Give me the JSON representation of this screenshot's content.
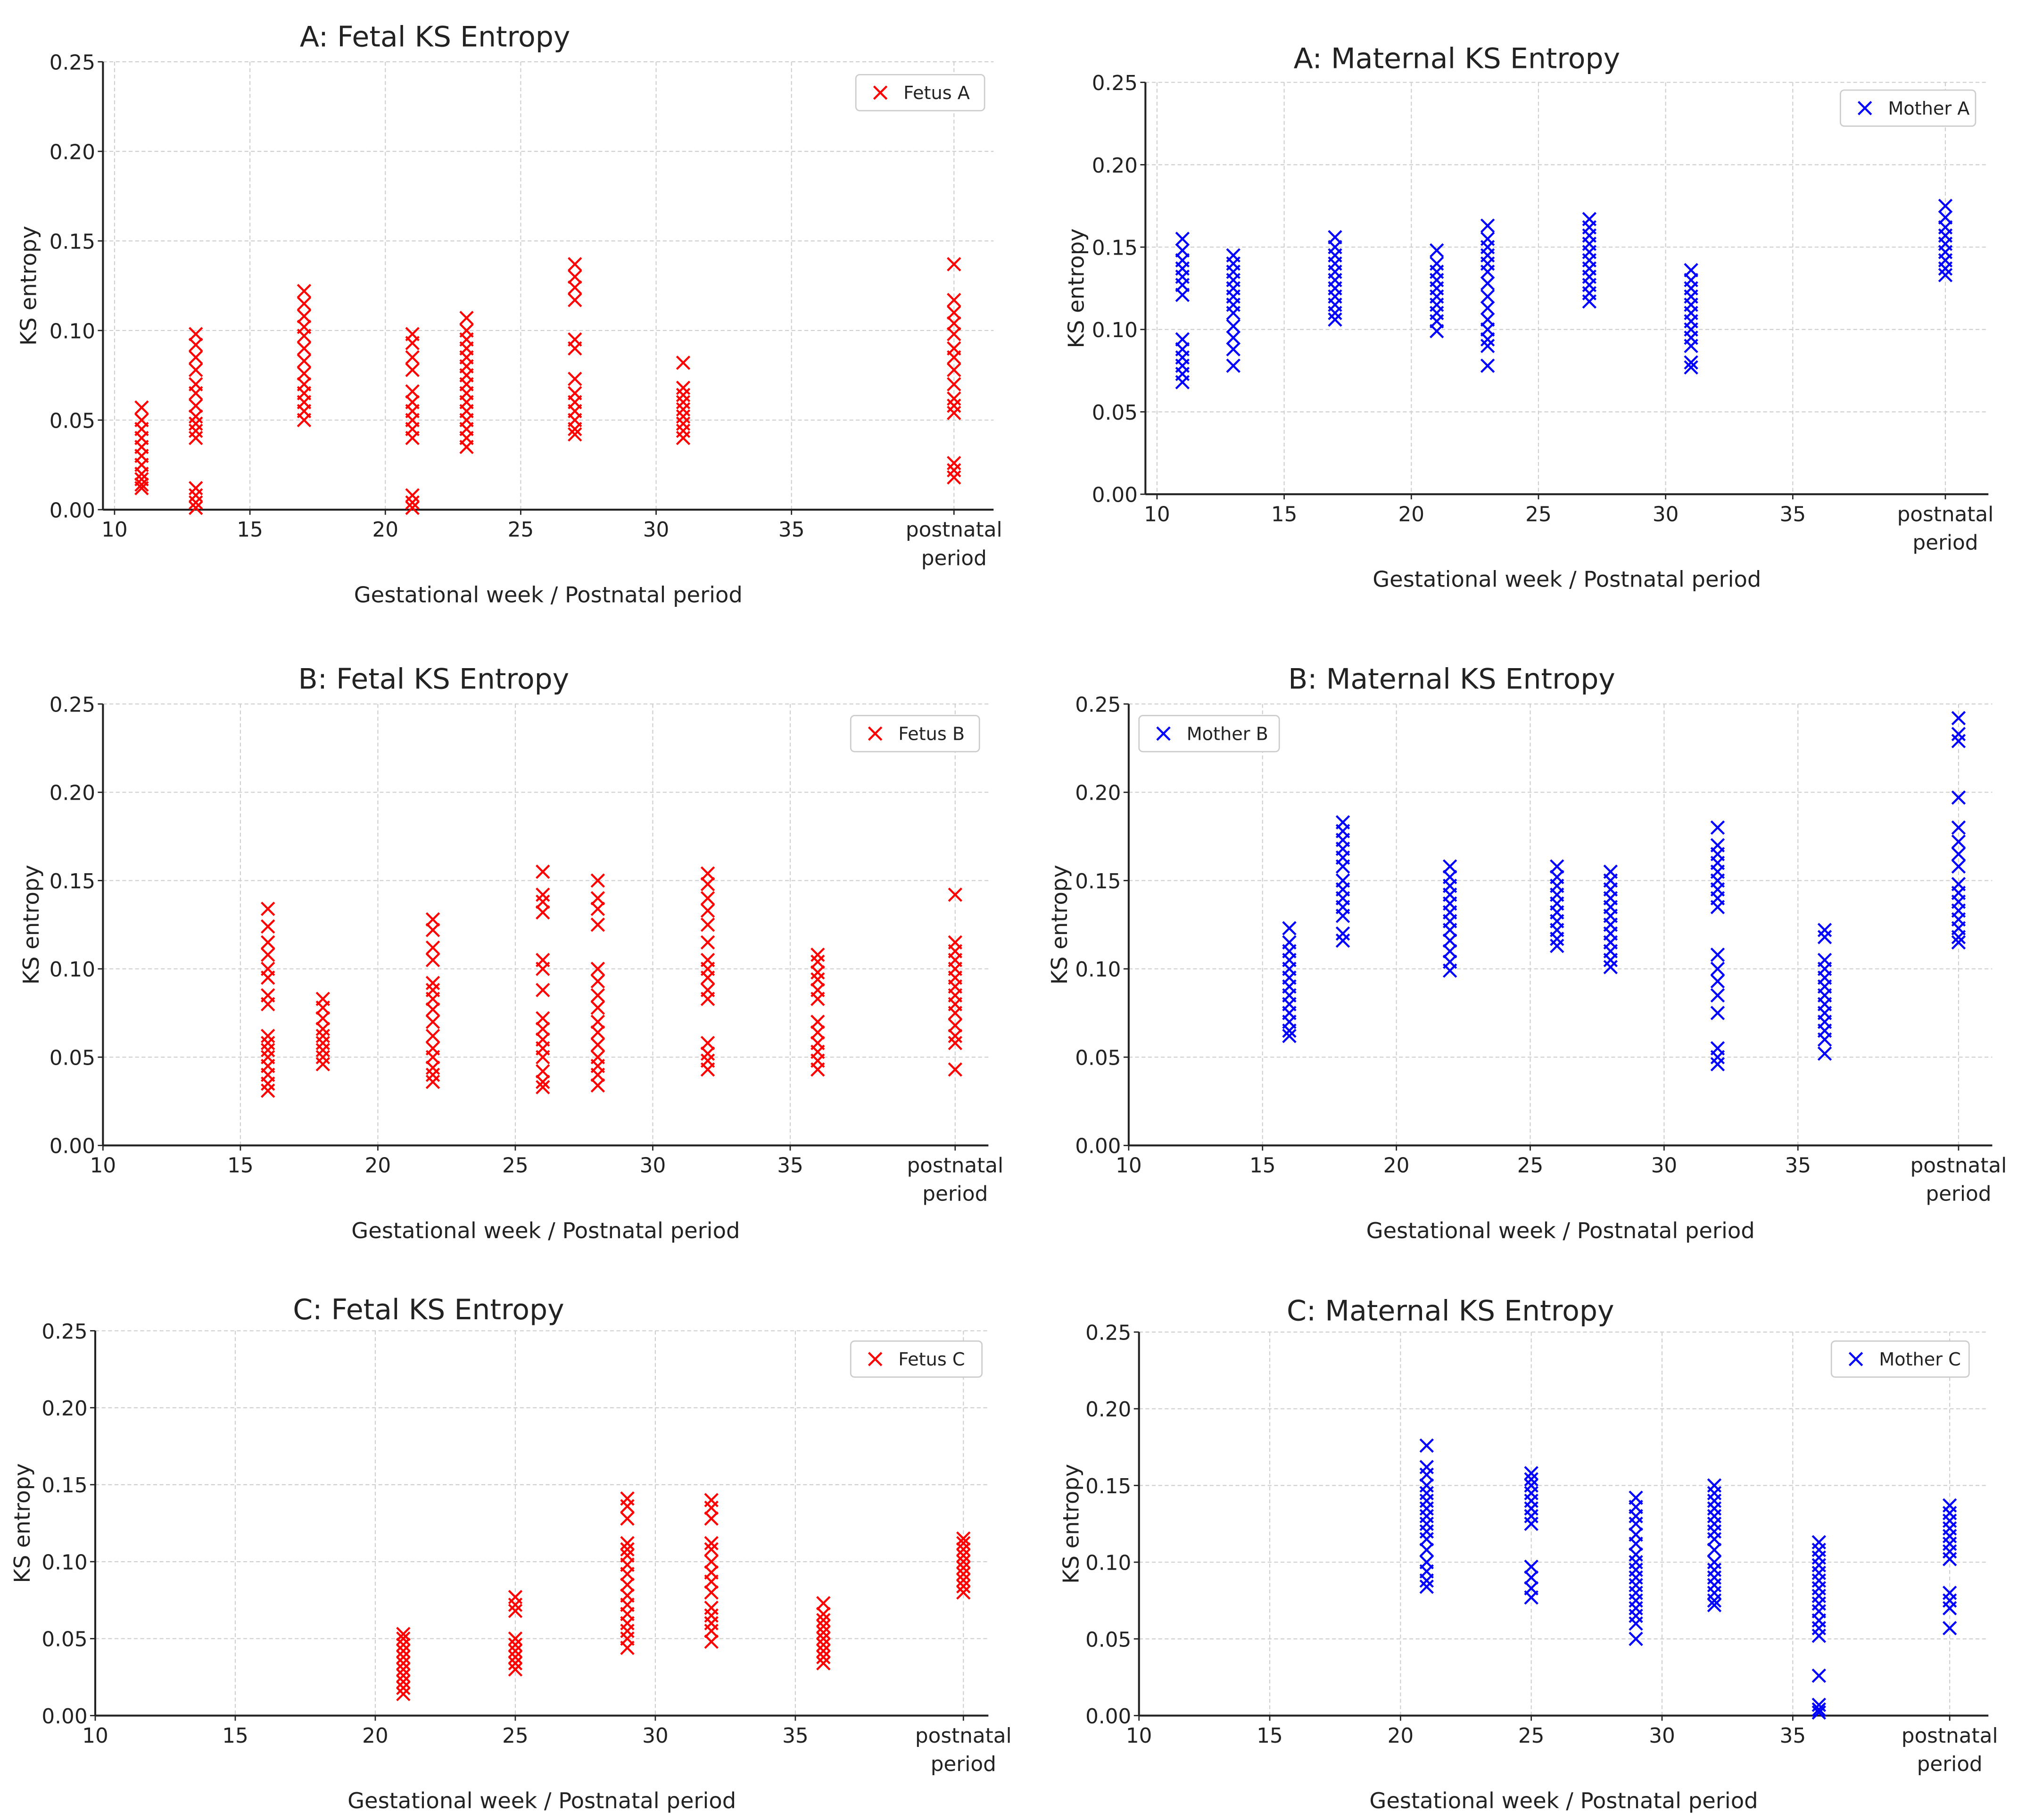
{
  "chart_data": [
    {
      "type": "scatter",
      "title": "A: Fetal KS Entropy",
      "xlabel": "Gestational week / Postnatal period",
      "ylabel": "KS entropy",
      "ylim": [
        0,
        0.25
      ],
      "y_ticks": [
        "0.00",
        "0.05",
        "0.10",
        "0.15",
        "0.20",
        "0.25"
      ],
      "x_ticks": [
        "10",
        "15",
        "20",
        "25",
        "30",
        "35"
      ],
      "postnatal_label": [
        "postnatal",
        "period"
      ],
      "postnatal_x": 41,
      "legend": "Fetus A",
      "legend_placement": "top-right",
      "color": "#ff0000",
      "grid": true,
      "groups": [
        {
          "x": 11,
          "y": [
            0.057,
            0.05,
            0.045,
            0.04,
            0.035,
            0.03,
            0.025,
            0.02,
            0.017,
            0.014,
            0.012
          ]
        },
        {
          "x": 13,
          "y": [
            0.098,
            0.092,
            0.085,
            0.078,
            0.07,
            0.065,
            0.058,
            0.052,
            0.048,
            0.044,
            0.04,
            0.012,
            0.008,
            0.004,
            0.001
          ]
        },
        {
          "x": 17,
          "y": [
            0.122,
            0.115,
            0.108,
            0.102,
            0.097,
            0.09,
            0.083,
            0.076,
            0.07,
            0.065,
            0.06,
            0.055,
            0.05
          ]
        },
        {
          "x": 21,
          "y": [
            0.098,
            0.093,
            0.085,
            0.078,
            0.066,
            0.06,
            0.055,
            0.05,
            0.045,
            0.04,
            0.008,
            0.004,
            0.001
          ]
        },
        {
          "x": 23,
          "y": [
            0.107,
            0.1,
            0.095,
            0.09,
            0.085,
            0.08,
            0.075,
            0.07,
            0.065,
            0.06,
            0.055,
            0.05,
            0.045,
            0.04,
            0.035
          ]
        },
        {
          "x": 27,
          "y": [
            0.137,
            0.13,
            0.124,
            0.117,
            0.095,
            0.09,
            0.073,
            0.065,
            0.06,
            0.055,
            0.05,
            0.045,
            0.042
          ]
        },
        {
          "x": 31,
          "y": [
            0.082,
            0.068,
            0.064,
            0.06,
            0.056,
            0.052,
            0.048,
            0.044,
            0.04
          ]
        },
        {
          "x": 41,
          "y": [
            0.137,
            0.117,
            0.11,
            0.104,
            0.098,
            0.09,
            0.085,
            0.078,
            0.07,
            0.062,
            0.058,
            0.054,
            0.026,
            0.022,
            0.018
          ]
        }
      ]
    },
    {
      "type": "scatter",
      "title": "A: Maternal KS Entropy",
      "xlabel": "Gestational week / Postnatal period",
      "ylabel": "KS entropy",
      "ylim": [
        0,
        0.25
      ],
      "y_ticks": [
        "0.00",
        "0.05",
        "0.10",
        "0.15",
        "0.20",
        "0.25"
      ],
      "x_ticks": [
        "10",
        "15",
        "20",
        "25",
        "30",
        "35"
      ],
      "postnatal_label": [
        "postnatal",
        "period"
      ],
      "postnatal_x": 41,
      "legend": "Mother A",
      "legend_placement": "top-right",
      "color": "#0000ff",
      "grid": true,
      "groups": [
        {
          "x": 11,
          "y": [
            0.155,
            0.148,
            0.142,
            0.137,
            0.132,
            0.127,
            0.121,
            0.094,
            0.088,
            0.083,
            0.078,
            0.073,
            0.068
          ]
        },
        {
          "x": 13,
          "y": [
            0.145,
            0.14,
            0.135,
            0.13,
            0.125,
            0.12,
            0.115,
            0.11,
            0.102,
            0.095,
            0.088,
            0.078
          ]
        },
        {
          "x": 17,
          "y": [
            0.156,
            0.15,
            0.145,
            0.14,
            0.135,
            0.13,
            0.125,
            0.12,
            0.115,
            0.11,
            0.106
          ]
        },
        {
          "x": 21,
          "y": [
            0.148,
            0.14,
            0.135,
            0.13,
            0.125,
            0.12,
            0.115,
            0.11,
            0.105,
            0.099
          ]
        },
        {
          "x": 23,
          "y": [
            0.163,
            0.155,
            0.15,
            0.145,
            0.14,
            0.135,
            0.128,
            0.12,
            0.113,
            0.106,
            0.1,
            0.094,
            0.09,
            0.078
          ]
        },
        {
          "x": 27,
          "y": [
            0.167,
            0.162,
            0.157,
            0.152,
            0.147,
            0.142,
            0.137,
            0.132,
            0.127,
            0.122,
            0.117
          ]
        },
        {
          "x": 31,
          "y": [
            0.136,
            0.13,
            0.125,
            0.12,
            0.115,
            0.11,
            0.105,
            0.1,
            0.095,
            0.09,
            0.08,
            0.077
          ]
        },
        {
          "x": 41,
          "y": [
            0.175,
            0.168,
            0.162,
            0.157,
            0.152,
            0.147,
            0.142,
            0.137,
            0.133
          ]
        }
      ]
    },
    {
      "type": "scatter",
      "title": "B: Fetal KS Entropy",
      "xlabel": "Gestational week / Postnatal period",
      "ylabel": "KS entropy",
      "ylim": [
        0,
        0.25
      ],
      "y_ticks": [
        "0.00",
        "0.05",
        "0.10",
        "0.15",
        "0.20",
        "0.25"
      ],
      "x_ticks": [
        "10",
        "15",
        "20",
        "25",
        "30",
        "35"
      ],
      "postnatal_label": [
        "postnatal",
        "period"
      ],
      "postnatal_x": 41,
      "legend": "Fetus B",
      "legend_placement": "top-right",
      "color": "#ff0000",
      "grid": true,
      "groups": [
        {
          "x": 16,
          "y": [
            0.134,
            0.124,
            0.115,
            0.108,
            0.1,
            0.095,
            0.085,
            0.08,
            0.062,
            0.058,
            0.054,
            0.05,
            0.045,
            0.04,
            0.035,
            0.031
          ]
        },
        {
          "x": 18,
          "y": [
            0.083,
            0.078,
            0.072,
            0.066,
            0.062,
            0.058,
            0.054,
            0.05,
            0.046
          ]
        },
        {
          "x": 22,
          "y": [
            0.128,
            0.122,
            0.112,
            0.105,
            0.092,
            0.088,
            0.083,
            0.077,
            0.07,
            0.062,
            0.055,
            0.05,
            0.044,
            0.04,
            0.036
          ]
        },
        {
          "x": 26,
          "y": [
            0.155,
            0.142,
            0.138,
            0.132,
            0.105,
            0.1,
            0.088,
            0.072,
            0.066,
            0.06,
            0.055,
            0.05,
            0.042,
            0.036,
            0.033
          ]
        },
        {
          "x": 28,
          "y": [
            0.15,
            0.14,
            0.134,
            0.125,
            0.1,
            0.093,
            0.085,
            0.078,
            0.07,
            0.064,
            0.057,
            0.05,
            0.045,
            0.04,
            0.034
          ]
        },
        {
          "x": 32,
          "y": [
            0.154,
            0.148,
            0.14,
            0.133,
            0.125,
            0.115,
            0.105,
            0.1,
            0.095,
            0.088,
            0.083,
            0.058,
            0.052,
            0.048,
            0.043
          ]
        },
        {
          "x": 36,
          "y": [
            0.108,
            0.104,
            0.098,
            0.094,
            0.088,
            0.083,
            0.07,
            0.064,
            0.058,
            0.053,
            0.048,
            0.043
          ]
        },
        {
          "x": 41,
          "y": [
            0.142,
            0.115,
            0.11,
            0.105,
            0.1,
            0.095,
            0.09,
            0.085,
            0.08,
            0.075,
            0.068,
            0.062,
            0.058,
            0.043
          ]
        }
      ]
    },
    {
      "type": "scatter",
      "title": "B: Maternal KS Entropy",
      "xlabel": "Gestational week / Postnatal period",
      "ylabel": "KS entropy",
      "ylim": [
        0,
        0.25
      ],
      "y_ticks": [
        "0.00",
        "0.05",
        "0.10",
        "0.15",
        "0.20",
        "0.25"
      ],
      "x_ticks": [
        "10",
        "15",
        "20",
        "25",
        "30",
        "35"
      ],
      "postnatal_label": [
        "postnatal",
        "period"
      ],
      "postnatal_x": 41,
      "legend": "Mother B",
      "legend_placement": "top-left",
      "color": "#0000ff",
      "grid": true,
      "groups": [
        {
          "x": 16,
          "y": [
            0.123,
            0.115,
            0.11,
            0.105,
            0.1,
            0.095,
            0.09,
            0.085,
            0.08,
            0.075,
            0.07,
            0.065,
            0.062
          ]
        },
        {
          "x": 18,
          "y": [
            0.183,
            0.178,
            0.173,
            0.168,
            0.163,
            0.158,
            0.15,
            0.145,
            0.14,
            0.135,
            0.13,
            0.12,
            0.116
          ]
        },
        {
          "x": 22,
          "y": [
            0.158,
            0.152,
            0.147,
            0.142,
            0.137,
            0.132,
            0.127,
            0.122,
            0.116,
            0.11,
            0.104,
            0.099
          ]
        },
        {
          "x": 26,
          "y": [
            0.158,
            0.152,
            0.147,
            0.142,
            0.137,
            0.132,
            0.127,
            0.122,
            0.117,
            0.113
          ]
        },
        {
          "x": 28,
          "y": [
            0.155,
            0.15,
            0.145,
            0.14,
            0.135,
            0.13,
            0.125,
            0.12,
            0.115,
            0.11,
            0.105,
            0.101
          ]
        },
        {
          "x": 32,
          "y": [
            0.18,
            0.17,
            0.165,
            0.16,
            0.155,
            0.15,
            0.145,
            0.14,
            0.135,
            0.108,
            0.1,
            0.093,
            0.085,
            0.075,
            0.055,
            0.05,
            0.046
          ]
        },
        {
          "x": 36,
          "y": [
            0.122,
            0.118,
            0.105,
            0.1,
            0.095,
            0.09,
            0.085,
            0.08,
            0.075,
            0.07,
            0.065,
            0.06,
            0.052
          ]
        },
        {
          "x": 41,
          "y": [
            0.242,
            0.233,
            0.229,
            0.197,
            0.18,
            0.172,
            0.165,
            0.158,
            0.148,
            0.143,
            0.138,
            0.133,
            0.128,
            0.123,
            0.118,
            0.115
          ]
        }
      ]
    },
    {
      "type": "scatter",
      "title": "C: Fetal KS Entropy",
      "xlabel": "Gestational week / Postnatal period",
      "ylabel": "KS entropy",
      "ylim": [
        0,
        0.25
      ],
      "y_ticks": [
        "0.00",
        "0.05",
        "0.10",
        "0.15",
        "0.20",
        "0.25"
      ],
      "x_ticks": [
        "10",
        "15",
        "20",
        "25",
        "30",
        "35"
      ],
      "postnatal_label": [
        "postnatal",
        "period"
      ],
      "postnatal_x": 41,
      "legend": "Fetus C",
      "legend_placement": "top-right",
      "color": "#ff0000",
      "grid": true,
      "groups": [
        {
          "x": 21,
          "y": [
            0.053,
            0.05,
            0.046,
            0.042,
            0.038,
            0.034,
            0.03,
            0.026,
            0.022,
            0.018,
            0.014
          ]
        },
        {
          "x": 25,
          "y": [
            0.077,
            0.072,
            0.068,
            0.05,
            0.046,
            0.042,
            0.038,
            0.034,
            0.03
          ]
        },
        {
          "x": 29,
          "y": [
            0.141,
            0.136,
            0.128,
            0.112,
            0.108,
            0.104,
            0.098,
            0.092,
            0.085,
            0.078,
            0.072,
            0.066,
            0.06,
            0.055,
            0.05,
            0.044
          ]
        },
        {
          "x": 32,
          "y": [
            0.14,
            0.135,
            0.128,
            0.112,
            0.108,
            0.1,
            0.093,
            0.087,
            0.08,
            0.07,
            0.065,
            0.06,
            0.055,
            0.048
          ]
        },
        {
          "x": 36,
          "y": [
            0.073,
            0.066,
            0.062,
            0.058,
            0.054,
            0.05,
            0.046,
            0.042,
            0.038,
            0.034
          ]
        },
        {
          "x": 41,
          "y": [
            0.115,
            0.112,
            0.108,
            0.104,
            0.1,
            0.096,
            0.092,
            0.088,
            0.084,
            0.08
          ]
        }
      ]
    },
    {
      "type": "scatter",
      "title": "C: Maternal KS Entropy",
      "xlabel": "Gestational week / Postnatal period",
      "ylabel": "KS entropy",
      "ylim": [
        0,
        0.25
      ],
      "y_ticks": [
        "0.00",
        "0.05",
        "0.10",
        "0.15",
        "0.20",
        "0.25"
      ],
      "x_ticks": [
        "10",
        "15",
        "20",
        "25",
        "30",
        "35"
      ],
      "postnatal_label": [
        "postnatal",
        "period"
      ],
      "postnatal_x": 41,
      "legend": "Mother C",
      "legend_placement": "top-right",
      "color": "#0000ff",
      "grid": true,
      "groups": [
        {
          "x": 21,
          "y": [
            0.176,
            0.162,
            0.157,
            0.15,
            0.145,
            0.14,
            0.135,
            0.13,
            0.125,
            0.12,
            0.115,
            0.108,
            0.1,
            0.094,
            0.088,
            0.084
          ]
        },
        {
          "x": 25,
          "y": [
            0.158,
            0.154,
            0.15,
            0.145,
            0.14,
            0.135,
            0.13,
            0.125,
            0.097,
            0.09,
            0.083,
            0.077
          ]
        },
        {
          "x": 29,
          "y": [
            0.142,
            0.136,
            0.13,
            0.125,
            0.118,
            0.112,
            0.105,
            0.1,
            0.095,
            0.09,
            0.085,
            0.08,
            0.075,
            0.07,
            0.065,
            0.06,
            0.05
          ]
        },
        {
          "x": 32,
          "y": [
            0.15,
            0.145,
            0.14,
            0.135,
            0.13,
            0.125,
            0.12,
            0.115,
            0.108,
            0.1,
            0.095,
            0.09,
            0.085,
            0.08,
            0.075,
            0.072
          ]
        },
        {
          "x": 36,
          "y": [
            0.113,
            0.108,
            0.103,
            0.098,
            0.093,
            0.088,
            0.083,
            0.078,
            0.073,
            0.068,
            0.062,
            0.057,
            0.052,
            0.026,
            0.007,
            0.004,
            0.002
          ]
        },
        {
          "x": 41,
          "y": [
            0.137,
            0.132,
            0.127,
            0.122,
            0.117,
            0.112,
            0.107,
            0.102,
            0.08,
            0.075,
            0.07,
            0.057
          ]
        }
      ]
    }
  ]
}
